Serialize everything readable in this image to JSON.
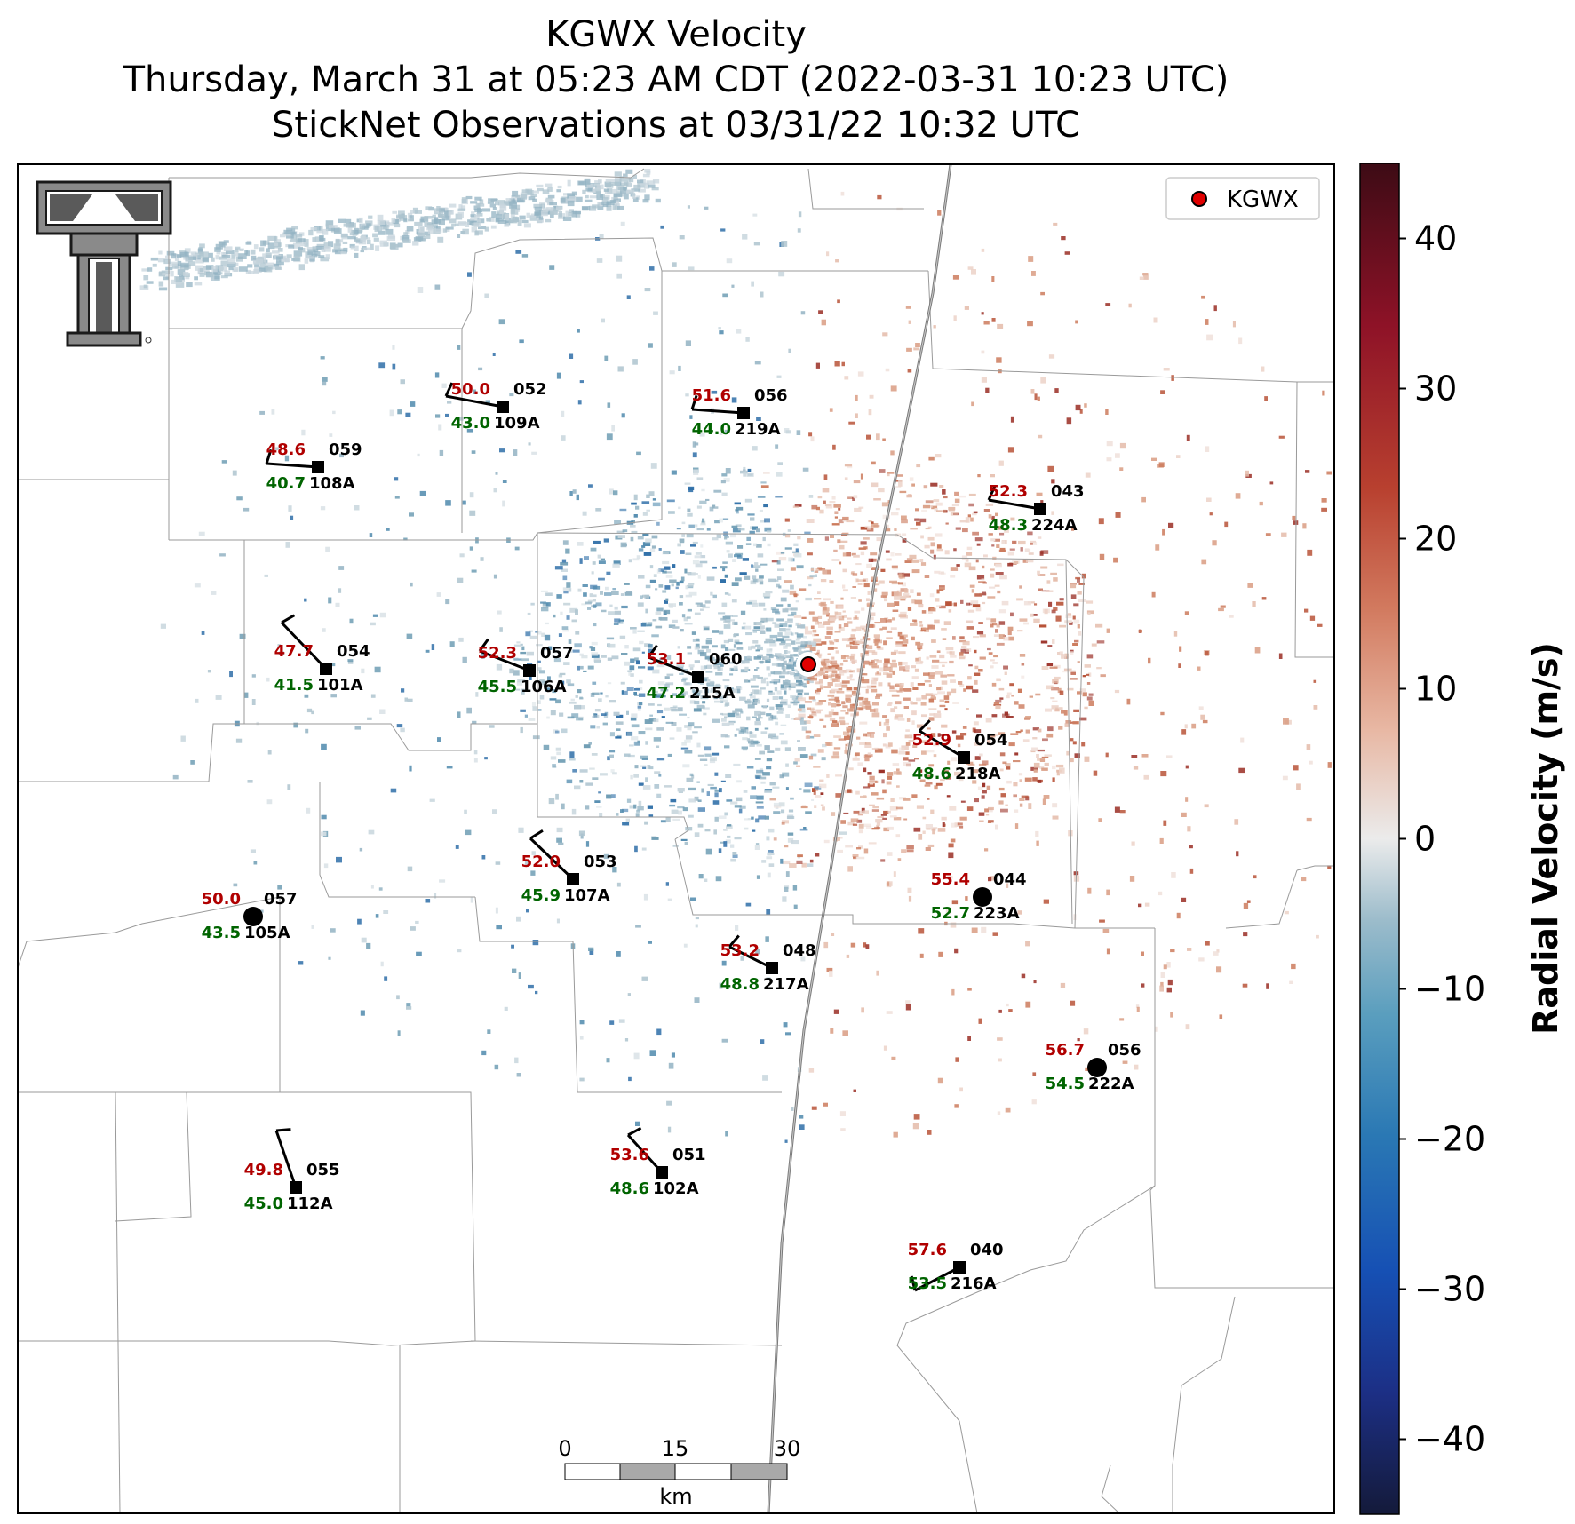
{
  "title": {
    "line1": "KGWX Velocity",
    "line2": "Thursday, March 31 at 05:23 AM CDT (2022-03-31 10:23 UTC)",
    "line3": "StickNet Observations at 03/31/22 10:32 UTC"
  },
  "legend": {
    "label": "KGWX"
  },
  "colorbar": {
    "label": "Radial Velocity (m/s)",
    "ticks": [
      "40",
      "30",
      "20",
      "10",
      "0",
      "−10",
      "−20",
      "−30",
      "−40"
    ],
    "range": [
      -45,
      45
    ],
    "colors": [
      "#141a3a",
      "#1c2f85",
      "#1650b4",
      "#2a78b4",
      "#5a9ebe",
      "#9cbccb",
      "#ebebeb",
      "#e8b8a4",
      "#d27a5f",
      "#b8402f",
      "#8e1227",
      "#3d0b15"
    ]
  },
  "scalebar": {
    "labels": [
      "0",
      "15",
      "30"
    ],
    "unit": "km"
  },
  "logo": {
    "name": "texas-tech-logo"
  },
  "stations": [
    {
      "id": "109A",
      "temp": "50.0",
      "dew": "43.0",
      "pres": "052",
      "barb": "square"
    },
    {
      "id": "219A",
      "temp": "51.6",
      "dew": "44.0",
      "pres": "056",
      "barb": "square"
    },
    {
      "id": "108A",
      "temp": "48.6",
      "dew": "40.7",
      "pres": "059",
      "barb": "square"
    },
    {
      "id": "224A",
      "temp": "52.3",
      "dew": "48.3",
      "pres": "043",
      "barb": "square"
    },
    {
      "id": "101A",
      "temp": "47.7",
      "dew": "41.5",
      "pres": "054",
      "barb": "square"
    },
    {
      "id": "106A",
      "temp": "52.3",
      "dew": "45.5",
      "pres": "057",
      "barb": "square"
    },
    {
      "id": "215A",
      "temp": "53.1",
      "dew": "47.2",
      "pres": "060",
      "barb": "square"
    },
    {
      "id": "218A",
      "temp": "52.9",
      "dew": "48.6",
      "pres": "054",
      "barb": "square"
    },
    {
      "id": "107A",
      "temp": "52.0",
      "dew": "45.9",
      "pres": "053",
      "barb": "square"
    },
    {
      "id": "223A",
      "temp": "55.4",
      "dew": "52.7",
      "pres": "044",
      "barb": "calm"
    },
    {
      "id": "105A",
      "temp": "50.0",
      "dew": "43.5",
      "pres": "057",
      "barb": "calm"
    },
    {
      "id": "217A",
      "temp": "53.2",
      "dew": "48.8",
      "pres": "048",
      "barb": "square"
    },
    {
      "id": "222A",
      "temp": "56.7",
      "dew": "54.5",
      "pres": "056",
      "barb": "calm"
    },
    {
      "id": "112A",
      "temp": "49.8",
      "dew": "45.0",
      "pres": "055",
      "barb": "square"
    },
    {
      "id": "102A",
      "temp": "53.6",
      "dew": "48.6",
      "pres": "051",
      "barb": "square"
    },
    {
      "id": "216A",
      "temp": "57.6",
      "dew": "53.5",
      "pres": "040",
      "barb": "square"
    }
  ]
}
